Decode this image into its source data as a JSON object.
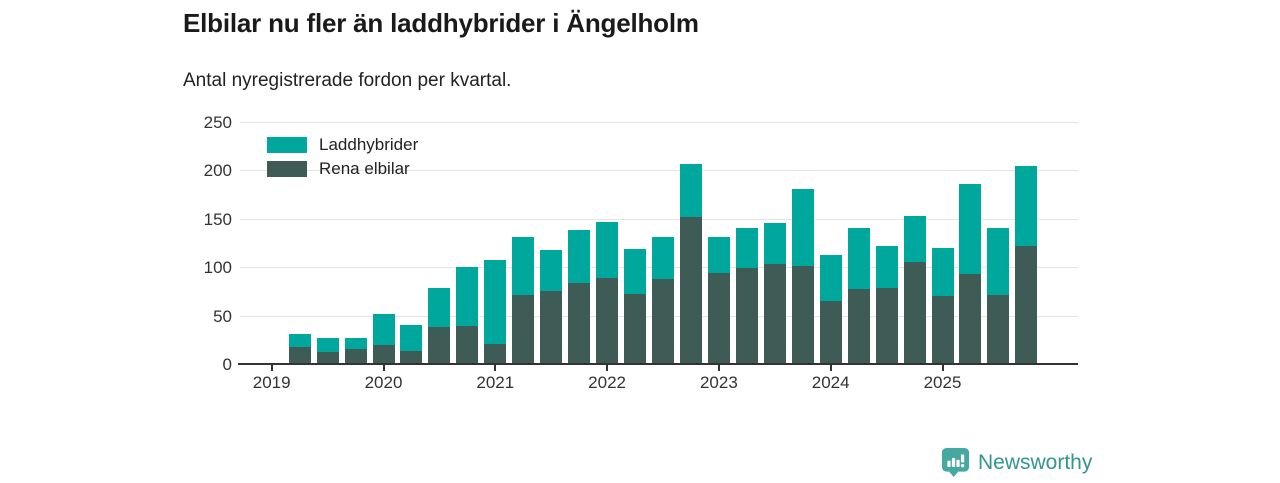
{
  "header": {
    "title": "Elbilar nu fler än laddhybrider i Ängelholm",
    "subtitle": "Antal nyregistrerade fordon per kvartal."
  },
  "colors": {
    "laddhybrider": "#00a79c",
    "rena_elbilar": "#3e5b56",
    "grid": "#e4e4e4",
    "axis": "#333333",
    "text": "#222222",
    "logo": "#31968f",
    "logo_icon": "#45a8a1"
  },
  "legend": {
    "items": [
      {
        "label": "Laddhybrider",
        "color_key": "laddhybrider"
      },
      {
        "label": "Rena elbilar",
        "color_key": "rena_elbilar"
      }
    ]
  },
  "chart_data": {
    "type": "bar",
    "stacked": true,
    "title": "Elbilar nu fler än laddhybrider i Ängelholm",
    "subtitle": "Antal nyregistrerade fordon per kvartal.",
    "xlabel": "",
    "ylabel": "",
    "ylim": [
      0,
      250
    ],
    "yticks": [
      0,
      50,
      100,
      150,
      200,
      250
    ],
    "grid": true,
    "legend_position": "top-left",
    "year_ticks": [
      "2019",
      "2020",
      "2021",
      "2022",
      "2023",
      "2024",
      "2025"
    ],
    "categories": [
      "2019 Q2",
      "2019 Q3",
      "2019 Q4",
      "2020 Q1",
      "2020 Q2",
      "2020 Q3",
      "2020 Q4",
      "2021 Q1",
      "2021 Q2",
      "2021 Q3",
      "2021 Q4",
      "2022 Q1",
      "2022 Q2",
      "2022 Q3",
      "2022 Q4",
      "2023 Q1",
      "2023 Q2",
      "2023 Q3",
      "2023 Q4",
      "2024 Q1",
      "2024 Q2",
      "2024 Q3",
      "2024 Q4",
      "2025 Q1",
      "2025 Q2",
      "2025 Q3",
      "2025 Q4"
    ],
    "series": [
      {
        "name": "Rena elbilar",
        "stack_order": "bottom",
        "values": [
          18,
          12,
          16,
          20,
          13,
          38,
          39,
          21,
          71,
          75,
          84,
          89,
          72,
          88,
          152,
          94,
          99,
          103,
          101,
          65,
          77,
          78,
          105,
          70,
          93,
          71,
          122
        ]
      },
      {
        "name": "Laddhybrider",
        "stack_order": "top",
        "values": [
          13,
          15,
          11,
          32,
          27,
          40,
          61,
          86,
          60,
          43,
          54,
          58,
          47,
          43,
          55,
          37,
          42,
          43,
          80,
          48,
          64,
          44,
          48,
          50,
          93,
          69,
          83
        ]
      }
    ],
    "stack_totals": [
      31,
      27,
      27,
      52,
      40,
      78,
      100,
      107,
      131,
      118,
      138,
      147,
      119,
      131,
      207,
      131,
      141,
      146,
      181,
      113,
      141,
      122,
      153,
      120,
      186,
      140,
      205
    ]
  },
  "footer": {
    "brand": "Newsworthy"
  }
}
